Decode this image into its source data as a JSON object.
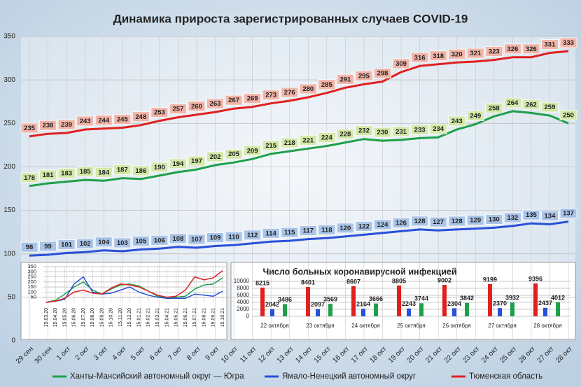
{
  "chart_data": [
    {
      "type": "line",
      "title": "Динамика прироста зарегистрированных случаев COVID-19",
      "categories": [
        "29 сен",
        "30 сен",
        "1 окт",
        "2 окт",
        "3 окт",
        "4 окт",
        "5 окт",
        "6 окт",
        "7 окт",
        "8 окт",
        "9 окт",
        "10 окт",
        "11 окт",
        "12 окт",
        "13 окт",
        "14 окт",
        "15 окт",
        "16 окт",
        "17 окт",
        "18 окт",
        "19 окт",
        "20 окт",
        "21 окт",
        "22 окт",
        "23 окт",
        "24 окт",
        "25 окт",
        "26 окт",
        "27 окт",
        "28 окт"
      ],
      "ylim": [
        0,
        350
      ],
      "yticks": [
        0,
        50,
        100,
        150,
        200,
        250,
        300,
        350
      ],
      "grid": true,
      "series": [
        {
          "name": "Ханты-Мансийский автономный округ — Югра",
          "color": "#1ea04a",
          "label_fill": "#d4e8a8",
          "values": [
            178,
            181,
            183,
            185,
            184,
            187,
            186,
            190,
            194,
            197,
            202,
            205,
            209,
            215,
            218,
            221,
            224,
            228,
            232,
            230,
            231,
            233,
            234,
            243,
            249,
            258,
            264,
            262,
            259,
            250
          ]
        },
        {
          "name": "Ямало-Ненецкий автономный округ",
          "color": "#2850d8",
          "label_fill": "#a9c4e8",
          "values": [
            98,
            99,
            101,
            102,
            104,
            103,
            105,
            106,
            108,
            107,
            109,
            110,
            112,
            114,
            115,
            117,
            118,
            120,
            122,
            124,
            126,
            128,
            127,
            128,
            129,
            130,
            132,
            135,
            134,
            137
          ]
        },
        {
          "name": "Тюменская область",
          "color": "#e02020",
          "label_fill": "#f2b4a8",
          "values": [
            235,
            238,
            239,
            243,
            244,
            245,
            248,
            253,
            257,
            260,
            263,
            267,
            269,
            273,
            276,
            280,
            285,
            291,
            295,
            298,
            309,
            316,
            318,
            320,
            321,
            323,
            326,
            326,
            331,
            333
          ]
        }
      ]
    },
    {
      "type": "line",
      "categories": [
        "15.03.20",
        "15.04.20",
        "15.05.20",
        "15.06.20",
        "15.07.20",
        "15.08.20",
        "15.09.20",
        "15.10.20",
        "15.11.20",
        "15.12.20",
        "15.01.21",
        "15.02.21",
        "15.03.21",
        "15.04.21",
        "15.05.21",
        "15.06.21",
        "15.07.21",
        "15.08.21",
        "15.09.21",
        "15.10.21"
      ],
      "ylim": [
        0,
        350
      ],
      "yticks": [
        50,
        100,
        150,
        200,
        250,
        300,
        350
      ],
      "grid": true,
      "series": [
        {
          "color": "#1ea04a",
          "values": [
            0,
            20,
            80,
            150,
            200,
            120,
            80,
            130,
            170,
            180,
            160,
            110,
            60,
            50,
            50,
            60,
            130,
            170,
            180,
            240
          ]
        },
        {
          "color": "#2850d8",
          "values": [
            0,
            10,
            30,
            180,
            250,
            100,
            80,
            90,
            120,
            150,
            100,
            70,
            50,
            40,
            40,
            40,
            80,
            70,
            60,
            110
          ]
        },
        {
          "color": "#e02020",
          "values": [
            0,
            10,
            40,
            100,
            120,
            90,
            80,
            140,
            180,
            170,
            150,
            110,
            70,
            50,
            60,
            120,
            250,
            220,
            240,
            310
          ]
        }
      ]
    },
    {
      "type": "bar",
      "title": "Число больных коронавирусной инфекцией",
      "categories": [
        "22 октября",
        "23 октября",
        "24 октября",
        "25 октября",
        "26 октября",
        "27 октября",
        "28 октября"
      ],
      "ylim": [
        0,
        10000
      ],
      "yticks": [
        0,
        2000,
        4000,
        6000,
        8000,
        10000
      ],
      "grid": true,
      "series": [
        {
          "color": "#e02020",
          "values": [
            8215,
            8401,
            8607,
            8805,
            9002,
            9199,
            9396
          ]
        },
        {
          "color": "#2850d8",
          "values": [
            2042,
            2097,
            2164,
            2243,
            2304,
            2370,
            2437
          ]
        },
        {
          "color": "#1ea04a",
          "values": [
            3486,
            3569,
            3666,
            3744,
            3842,
            3932,
            4012
          ]
        }
      ]
    }
  ]
}
